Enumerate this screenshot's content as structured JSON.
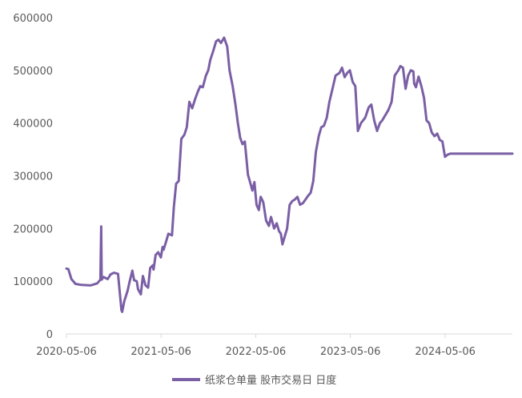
{
  "chart_data": {
    "type": "line",
    "title": "",
    "xlabel": "",
    "ylabel": "",
    "ylim": [
      0,
      600000
    ],
    "yticks": [
      0,
      100000,
      200000,
      300000,
      400000,
      500000,
      600000
    ],
    "y_tick_labels": [
      "0",
      "100000",
      "200000",
      "300000",
      "400000",
      "500000",
      "600000"
    ],
    "xlim": [
      "2020-05-06",
      "2025-01-20"
    ],
    "x_tick_labels": [
      "2020-05-06",
      "2021-05-06",
      "2022-05-06",
      "2023-05-06",
      "2024-05-06"
    ],
    "grid": false,
    "legend_position": "bottom",
    "color": "#7b5fa5",
    "series": [
      {
        "name": "纸浆仓单量 股市交易日 日度",
        "x": [
          "2020-05-06",
          "2020-05-13",
          "2020-05-25",
          "2020-06-10",
          "2020-07-03",
          "2020-08-07",
          "2020-09-02",
          "2020-09-14",
          "2020-09-17",
          "2020-09-19",
          "2020-09-26",
          "2020-10-12",
          "2020-10-23",
          "2020-11-05",
          "2020-11-21",
          "2020-12-04",
          "2020-12-07",
          "2020-12-15",
          "2020-12-28",
          "2021-01-05",
          "2021-01-15",
          "2021-01-22",
          "2021-02-01",
          "2021-02-06",
          "2021-02-17",
          "2021-02-25",
          "2021-03-07",
          "2021-03-17",
          "2021-03-25",
          "2021-04-04",
          "2021-04-07",
          "2021-04-15",
          "2021-04-25",
          "2021-05-05",
          "2021-05-12",
          "2021-05-16",
          "2021-05-25",
          "2021-06-03",
          "2021-06-17",
          "2021-06-24",
          "2021-07-03",
          "2021-07-13",
          "2021-07-23",
          "2021-08-04",
          "2021-08-13",
          "2021-08-23",
          "2021-09-03",
          "2021-09-14",
          "2021-09-25",
          "2021-10-04",
          "2021-10-14",
          "2021-10-26",
          "2021-11-04",
          "2021-11-12",
          "2021-11-22",
          "2021-12-04",
          "2021-12-13",
          "2021-12-23",
          "2022-01-04",
          "2022-01-16",
          "2022-01-25",
          "2022-02-06",
          "2022-02-17",
          "2022-02-26",
          "2022-03-07",
          "2022-03-16",
          "2022-03-25",
          "2022-04-06",
          "2022-04-16",
          "2022-04-23",
          "2022-05-01",
          "2022-05-09",
          "2022-05-18",
          "2022-05-25",
          "2022-06-04",
          "2022-06-15",
          "2022-06-26",
          "2022-07-04",
          "2022-07-16",
          "2022-07-26",
          "2022-08-04",
          "2022-08-11",
          "2022-08-17",
          "2022-08-26",
          "2022-09-04",
          "2022-09-14",
          "2022-09-24",
          "2022-10-04",
          "2022-10-14",
          "2022-10-24",
          "2022-11-04",
          "2022-11-14",
          "2022-11-24",
          "2022-12-04",
          "2022-12-14",
          "2022-12-24",
          "2023-01-04",
          "2023-01-14",
          "2023-01-24",
          "2023-02-04",
          "2023-02-14",
          "2023-02-26",
          "2023-03-10",
          "2023-03-25",
          "2023-04-04",
          "2023-04-14",
          "2023-04-24",
          "2023-05-04",
          "2023-05-15",
          "2023-05-25",
          "2023-06-04",
          "2023-06-16",
          "2023-07-02",
          "2023-07-16",
          "2023-07-26",
          "2023-08-06",
          "2023-08-17",
          "2023-08-28",
          "2023-09-06",
          "2023-09-18",
          "2023-09-30",
          "2023-10-12",
          "2023-10-24",
          "2023-11-07",
          "2023-11-15",
          "2023-11-25",
          "2023-12-05",
          "2023-12-15",
          "2023-12-25",
          "2024-01-04",
          "2024-01-07",
          "2024-01-14",
          "2024-01-24",
          "2024-02-04",
          "2024-02-14",
          "2024-02-24",
          "2024-03-05",
          "2024-03-15",
          "2024-03-26",
          "2024-04-05",
          "2024-04-15",
          "2024-04-25",
          "2024-05-05",
          "2024-05-15",
          "2024-05-25",
          "2024-06-04",
          "2024-06-14",
          "2024-06-24",
          "2024-07-04",
          "2024-07-14",
          "2024-07-24",
          "2024-08-04",
          "2024-08-14",
          "2024-08-24",
          "2024-09-04",
          "2024-09-14",
          "2024-09-24",
          "2024-10-04",
          "2024-10-14",
          "2024-10-24",
          "2024-11-04",
          "2024-11-14",
          "2024-11-24",
          "2024-12-04",
          "2024-12-14",
          "2024-12-24",
          "2025-01-04",
          "2025-01-14",
          "2025-01-20"
        ],
        "values": [
          124000,
          123000,
          104000,
          95000,
          93000,
          92000,
          96000,
          103000,
          204000,
          103000,
          108000,
          104000,
          113000,
          116000,
          114000,
          45000,
          42000,
          62000,
          82000,
          100000,
          120000,
          102000,
          100000,
          85000,
          75000,
          110000,
          92000,
          88000,
          125000,
          130000,
          122000,
          150000,
          155000,
          145000,
          165000,
          160000,
          175000,
          190000,
          187000,
          240000,
          285000,
          290000,
          370000,
          378000,
          392000,
          440000,
          428000,
          445000,
          460000,
          470000,
          468000,
          490000,
          500000,
          520000,
          535000,
          555000,
          558000,
          552000,
          562000,
          545000,
          500000,
          470000,
          435000,
          400000,
          372000,
          360000,
          365000,
          302000,
          285000,
          272000,
          288000,
          245000,
          235000,
          260000,
          250000,
          215000,
          205000,
          222000,
          200000,
          210000,
          195000,
          190000,
          170000,
          185000,
          200000,
          245000,
          252000,
          255000,
          260000,
          245000,
          248000,
          255000,
          262000,
          268000,
          290000,
          345000,
          375000,
          392000,
          395000,
          410000,
          440000,
          465000,
          490000,
          495000,
          505000,
          487000,
          495000,
          500000,
          478000,
          470000,
          385000,
          400000,
          410000,
          430000,
          435000,
          405000,
          385000,
          400000,
          405000,
          415000,
          425000,
          440000,
          490000,
          500000,
          508000,
          505000,
          465000,
          490000,
          500000,
          498000,
          475000,
          468000,
          488000,
          470000,
          448000,
          405000,
          400000,
          382000,
          375000,
          380000,
          368000,
          365000,
          336000,
          340000,
          342000,
          342000,
          342000,
          342000,
          342000,
          342000,
          342000,
          342000,
          342000,
          342000,
          342000,
          342000,
          342000,
          342000,
          342000,
          342000,
          342000,
          342000,
          342000,
          342000,
          342000,
          342000,
          342000,
          342000,
          342000
        ]
      }
    ]
  }
}
